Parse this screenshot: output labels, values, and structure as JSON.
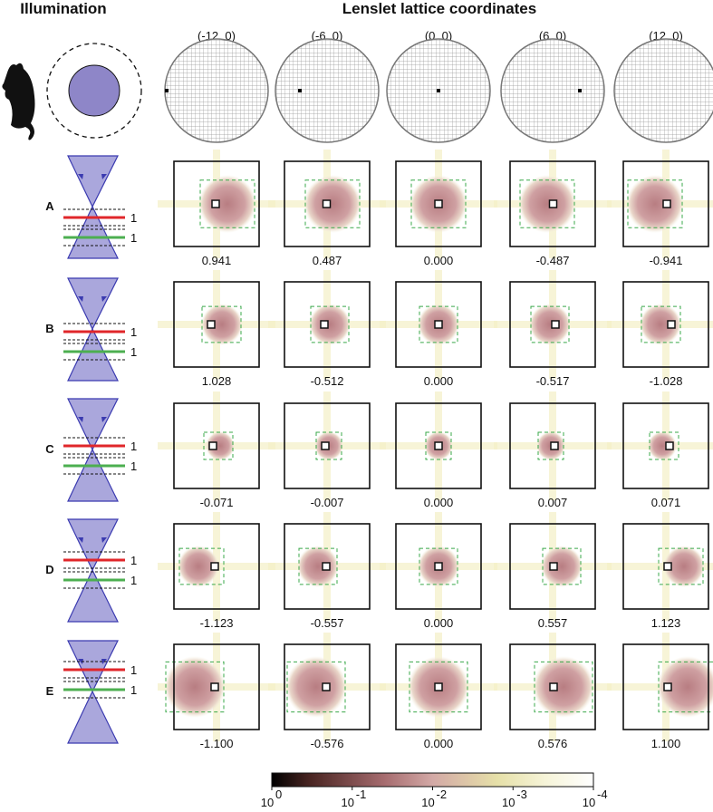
{
  "header": {
    "illumination": "Illumination",
    "lattice": "Lenslet lattice coordinates"
  },
  "columns": [
    "(-12, 0)",
    "(-6, 0)",
    "(0, 0)",
    "(6, 0)",
    "(12, 0)"
  ],
  "rows": [
    {
      "label": "A",
      "line_labels": [
        "1",
        "1"
      ],
      "values": [
        "0.941",
        "0.487",
        "0.000",
        "-0.487",
        "-0.941"
      ]
    },
    {
      "label": "B",
      "line_labels": [
        "1",
        "1"
      ],
      "values": [
        "1.028",
        "-0.512",
        "0.000",
        "-0.517",
        "-1.028"
      ]
    },
    {
      "label": "C",
      "line_labels": [
        "1",
        "1"
      ],
      "values": [
        "-0.071",
        "-0.007",
        "0.000",
        "0.007",
        "0.071"
      ]
    },
    {
      "label": "D",
      "line_labels": [
        "1",
        "1"
      ],
      "values": [
        "-1.123",
        "-0.557",
        "0.000",
        "0.557",
        "1.123"
      ]
    },
    {
      "label": "E",
      "line_labels": [
        "1",
        "1"
      ],
      "values": [
        "-1.100",
        "-0.576",
        "0.000",
        "0.576",
        "1.100"
      ]
    }
  ],
  "colorbar": {
    "ticks": [
      {
        "base": "10",
        "exponent": "0"
      },
      {
        "base": "10",
        "exponent": "-1"
      },
      {
        "base": "10",
        "exponent": "-2"
      },
      {
        "base": "10",
        "exponent": "-3"
      },
      {
        "base": "10",
        "exponent": "-4"
      }
    ]
  }
}
